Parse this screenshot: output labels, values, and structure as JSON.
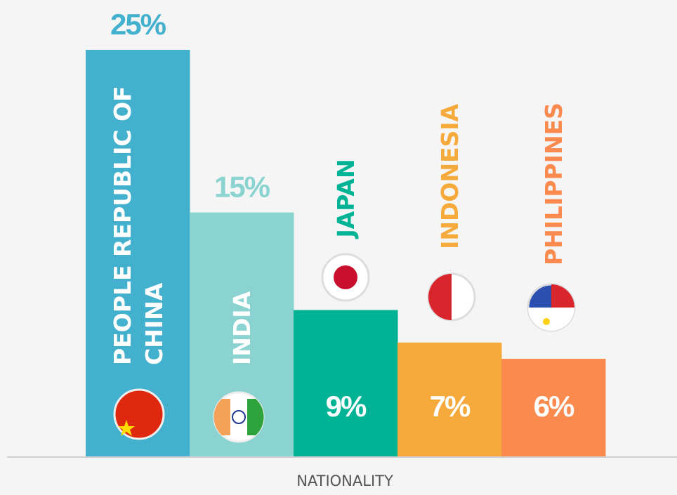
{
  "chart_data": {
    "type": "bar",
    "categories": [
      "PEOPLE REPUBLIC OF CHINA",
      "INDIA",
      "JAPAN",
      "INDONESIA",
      "PHILIPPINES"
    ],
    "values": [
      25,
      15,
      9,
      7,
      6
    ],
    "value_labels": [
      "25%",
      "15%",
      "9%",
      "7%",
      "6%"
    ],
    "colors": [
      "#43b1cd",
      "#8ad3d1",
      "#00b395",
      "#f5aa3b",
      "#fb8a4f"
    ],
    "xlabel": "NATIONALITY"
  }
}
